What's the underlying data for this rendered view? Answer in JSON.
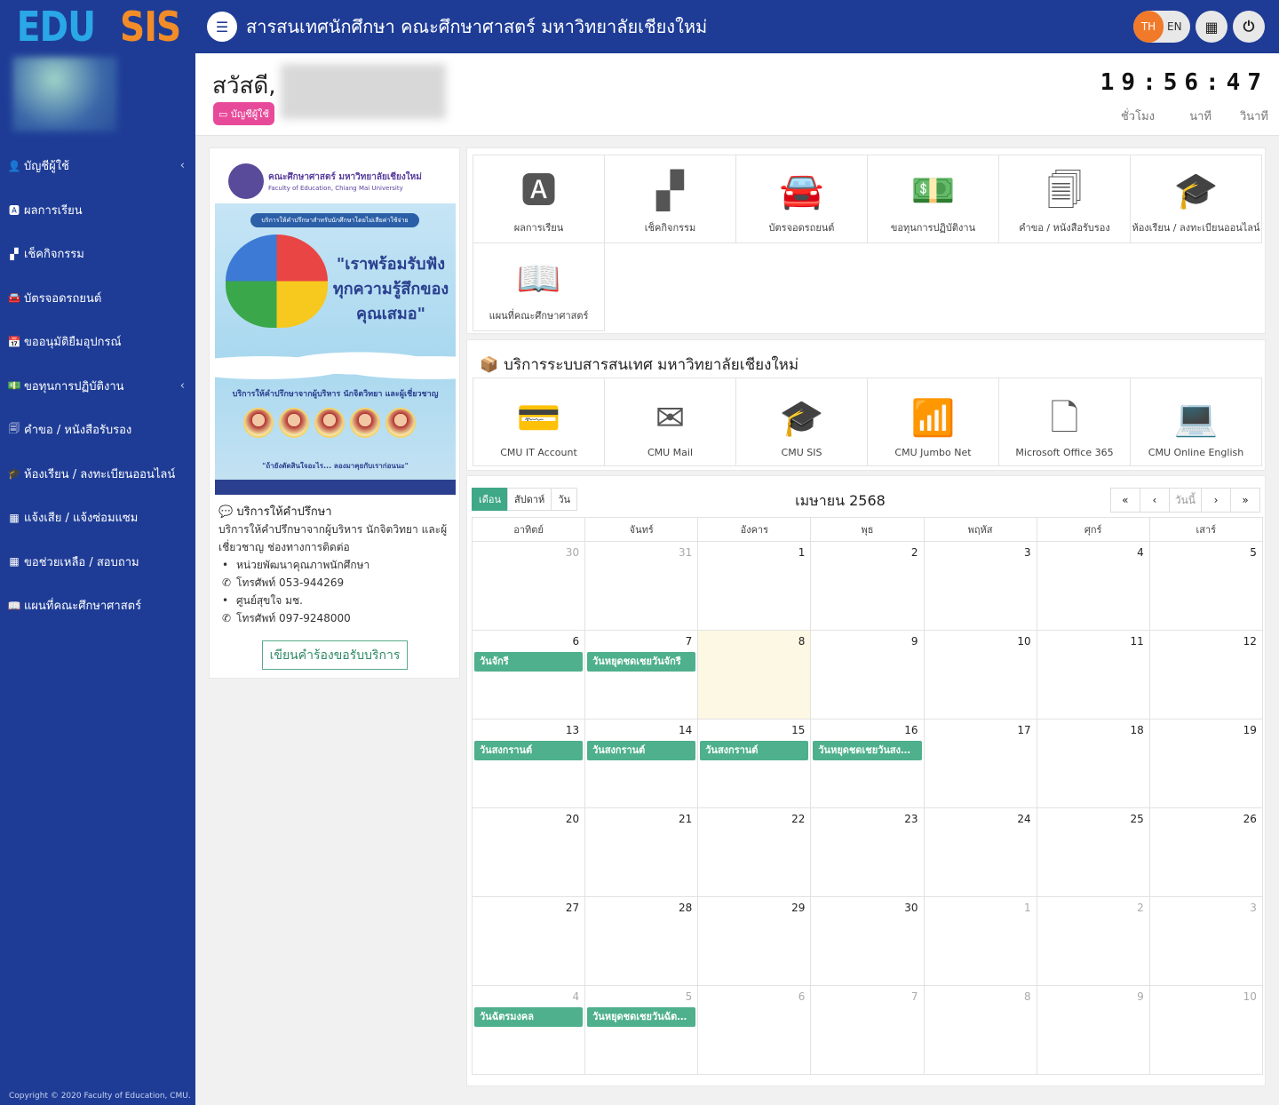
{
  "brand": {
    "edu": "EDU",
    "sis": "SIS"
  },
  "header": {
    "title": "สารสนเทศนักศึกษา คณะศึกษาศาสตร์ มหาวิทยาลัยเชียงใหม่",
    "lang_th": "TH",
    "lang_en": "EN"
  },
  "sidebar": {
    "items": [
      {
        "label": "บัญชีผู้ใช้",
        "icon": "user-icon"
      },
      {
        "label": "ผลการเรียน",
        "icon": "grade-a-icon"
      },
      {
        "label": "เช็คกิจกรรม",
        "icon": "checkerboard-icon"
      },
      {
        "label": "บัตรจอดรถยนต์",
        "icon": "car-icon"
      },
      {
        "label": "ขออนุมัติยืมอุปกรณ์",
        "icon": "calendar-icon"
      },
      {
        "label": "ขอทุนการปฏิบัติงาน",
        "icon": "money-icon"
      },
      {
        "label": "คำขอ / หนังสือรับรอง",
        "icon": "documents-icon"
      },
      {
        "label": "ห้องเรียน / ลงทะเบียนออนไลน์",
        "icon": "graduation-cap-icon"
      },
      {
        "label": "แจ้งเสีย / แจ้งซ่อมแซม",
        "icon": "qrcode-icon"
      },
      {
        "label": "ขอช่วยเหลือ / สอบถาม",
        "icon": "qrcode-icon"
      },
      {
        "label": "แผนที่คณะศึกษาศาสตร์",
        "icon": "book-open-icon"
      }
    ],
    "copyright": "Copyright © 2020 Faculty of Education, CMU."
  },
  "greeting": {
    "hello": "สวัสดี,",
    "account_badge": "บัญชีผู้ใช้"
  },
  "clock": {
    "time": "19:56:47",
    "hour_label": "ชั่วโมง",
    "minute_label": "นาที",
    "second_label": "วินาที"
  },
  "poster": {
    "faculty": "คณะศึกษาศาสตร์ มหาวิทยาลัยเชียงใหม่",
    "faculty_en": "Faculty of Education, Chiang Mai University",
    "band": "บริการให้คำปรึกษาสำหรับนักศึกษาโดยไม่เสียค่าใช้จ่าย",
    "slogan": "\"เราพร้อมรับฟังทุกความรู้สึกของคุณเสมอ\"",
    "subtitle": "บริการให้คำปรึกษาจากผู้บริหาร นักจิตวิทยา และผู้เชี่ยวชาญ",
    "quote": "\"ถ้ายังตัดสินใจอะไร... ลองมาคุยกับเราก่อนนะ\""
  },
  "consult": {
    "title": "บริการให้คำปรึกษา",
    "description": "บริการให้คำปรึกษาจากผู้บริหาร นักจิตวิทยา และผู้เชี่ยวชาญ ช่องทางการติดต่อ",
    "unit1": "หน่วยพัฒนาคุณภาพนักศึกษา",
    "phone1": "โทรศัพท์ 053-944269",
    "unit2": "ศูนย์สุขใจ มช.",
    "phone2": "โทรศัพท์ 097-9248000",
    "request_button": "เขียนคำร้องขอรับบริการ"
  },
  "services": [
    {
      "label": "ผลการเรียน",
      "icon": "grade-a-icon",
      "glyph": "🅰"
    },
    {
      "label": "เช็คกิจกรรม",
      "icon": "checkerboard-icon",
      "glyph": "▞"
    },
    {
      "label": "บัตรจอดรถยนต์",
      "icon": "car-icon",
      "glyph": "🚘"
    },
    {
      "label": "ขอทุนการปฏิบัติงาน",
      "icon": "money-icon",
      "glyph": "💵"
    },
    {
      "label": "คำขอ / หนังสือรับรอง",
      "icon": "documents-icon",
      "glyph": "🗐"
    },
    {
      "label": "ห้องเรียน / ลงทะเบียนออนไลน์",
      "icon": "graduation-cap-icon",
      "glyph": "🎓"
    },
    {
      "label": "แผนที่คณะศึกษาศาสตร์",
      "icon": "book-open-icon",
      "glyph": "📖"
    }
  ],
  "cmu_services": {
    "title": "บริการระบบสารสนเทศ มหาวิทยาลัยเชียงใหม่",
    "items": [
      {
        "label": "CMU IT Account",
        "icon": "credit-card-icon",
        "glyph": "💳"
      },
      {
        "label": "CMU Mail",
        "icon": "envelope-icon",
        "glyph": "✉"
      },
      {
        "label": "CMU SIS",
        "icon": "graduation-cap-icon",
        "glyph": "🎓"
      },
      {
        "label": "CMU Jumbo Net",
        "icon": "wifi-icon",
        "glyph": "📶"
      },
      {
        "label": "Microsoft Office 365",
        "icon": "word-file-icon",
        "glyph": "🗋"
      },
      {
        "label": "CMU Online English",
        "icon": "laptop-icon",
        "glyph": "💻"
      }
    ]
  },
  "calendar": {
    "views": {
      "month": "เดือน",
      "week": "สัปดาห์",
      "day": "วัน"
    },
    "title": "เมษายน 2568",
    "today_label": "วันนี้",
    "weekdays": [
      "อาทิตย์",
      "จันทร์",
      "อังคาร",
      "พุธ",
      "พฤหัส",
      "ศุกร์",
      "เสาร์"
    ],
    "weeks": [
      [
        {
          "d": "30",
          "o": true
        },
        {
          "d": "31",
          "o": true
        },
        {
          "d": "1"
        },
        {
          "d": "2"
        },
        {
          "d": "3"
        },
        {
          "d": "4"
        },
        {
          "d": "5"
        }
      ],
      [
        {
          "d": "6",
          "ev": "วันจักรี"
        },
        {
          "d": "7",
          "ev": "วันหยุดชดเชยวันจักรี"
        },
        {
          "d": "8",
          "today": true
        },
        {
          "d": "9"
        },
        {
          "d": "10"
        },
        {
          "d": "11"
        },
        {
          "d": "12"
        }
      ],
      [
        {
          "d": "13",
          "ev": "วันสงกรานต์"
        },
        {
          "d": "14",
          "ev": "วันสงกรานต์"
        },
        {
          "d": "15",
          "ev": "วันสงกรานต์"
        },
        {
          "d": "16",
          "ev": "วันหยุดชดเชยวันสงก..."
        },
        {
          "d": "17"
        },
        {
          "d": "18"
        },
        {
          "d": "19"
        }
      ],
      [
        {
          "d": "20"
        },
        {
          "d": "21"
        },
        {
          "d": "22"
        },
        {
          "d": "23"
        },
        {
          "d": "24"
        },
        {
          "d": "25"
        },
        {
          "d": "26"
        }
      ],
      [
        {
          "d": "27"
        },
        {
          "d": "28"
        },
        {
          "d": "29"
        },
        {
          "d": "30"
        },
        {
          "d": "1",
          "o": true
        },
        {
          "d": "2",
          "o": true
        },
        {
          "d": "3",
          "o": true
        }
      ],
      [
        {
          "d": "4",
          "o": true,
          "ev": "วันฉัตรมงคล"
        },
        {
          "d": "5",
          "o": true,
          "ev": "วันหยุดชดเชยวันฉัตร..."
        },
        {
          "d": "6",
          "o": true
        },
        {
          "d": "7",
          "o": true
        },
        {
          "d": "8",
          "o": true
        },
        {
          "d": "9",
          "o": true
        },
        {
          "d": "10",
          "o": true
        }
      ]
    ]
  },
  "colors": {
    "primary": "#1e3c96",
    "accent_orange": "#f07a2a",
    "event_green": "#4eb08c",
    "badge_pink": "#e84a9a"
  }
}
